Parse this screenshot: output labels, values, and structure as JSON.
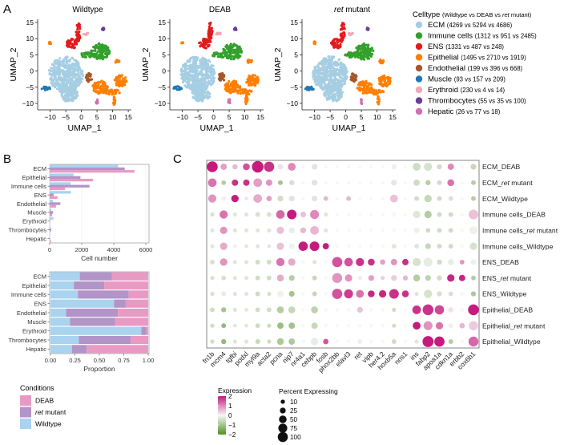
{
  "panel_labels": {
    "A": "A",
    "B": "B",
    "C": "C"
  },
  "colors": {
    "ECM": "#a6cee3",
    "Immune cells": "#33a02c",
    "ENS": "#e31a1c",
    "Epithelial": "#ff7f00",
    "Endothelial": "#a65628",
    "Muscle": "#1f78b4",
    "Erythroid": "#f4a6b4",
    "Thrombocytes": "#6a3d9a",
    "Hepatic": "#cf6fb0",
    "cond_DEAB": "#e99ac4",
    "cond_ret": "#b294c8",
    "cond_WT": "#a9d3ef",
    "expr_high": "#c51b7d",
    "expr_mid": "#f7f7f7",
    "expr_low": "#4d9221"
  },
  "chart_data": [
    {
      "type": "scatter",
      "id": "umap",
      "panels": [
        {
          "title": "Wildtype",
          "title_italic": false
        },
        {
          "title": "DEAB",
          "title_italic": false
        },
        {
          "title_italic_part": "ret",
          "title_rest": " mutant",
          "title_italic": true
        }
      ],
      "xlabel": "UMAP_1",
      "ylabel": "UMAP_2",
      "xlim": [
        -14,
        16
      ],
      "ylim": [
        -12,
        16
      ],
      "xticks": [
        "-10",
        "-5",
        "0",
        "5",
        "10",
        "15"
      ],
      "xtick_values": [
        -10,
        -5,
        0,
        5,
        10,
        15
      ],
      "yticks": [
        "15",
        "10",
        "5",
        "0",
        "-5",
        "-10"
      ],
      "ytick_values": [
        15,
        10,
        5,
        0,
        -5,
        -10
      ],
      "legend": {
        "title": "Celltype",
        "subtitle_pre": "(Wildtype vs DEAB vs ",
        "subtitle_italic": "ret",
        "subtitle_post": " mutant)",
        "entries": [
          {
            "name": "ECM",
            "counts": "(4269 vs 5294 vs 4686)"
          },
          {
            "name": "Immune cells",
            "counts": "(1312 vs 951 vs 2485)"
          },
          {
            "name": "ENS",
            "counts": "(1331 vs 487 vs 248)"
          },
          {
            "name": "Epithelial",
            "counts": "(1495 vs 2710 vs 1919)"
          },
          {
            "name": "Endothelial",
            "counts": "(199 vs 396 vs 668)"
          },
          {
            "name": "Muscle",
            "counts": "(93 vs 157 vs 209)"
          },
          {
            "name": "Erythroid",
            "counts": "(230 vs 4 vs 14)"
          },
          {
            "name": "Thrombocytes",
            "counts": "(55 vs 35 vs 100)"
          },
          {
            "name": "Hepatic",
            "counts": "(26 vs 77 vs 18)"
          }
        ]
      },
      "clusters": [
        {
          "type": "ECM",
          "cx": -5,
          "cy": -1,
          "rx": 5.5,
          "ry": 5.5
        },
        {
          "type": "ECM",
          "cx": -4,
          "cy": -7,
          "rx": 3,
          "ry": 2.5
        },
        {
          "type": "Muscle",
          "cx": -11.5,
          "cy": -5.3,
          "rx": 1.5,
          "ry": 0.6
        },
        {
          "type": "ENS",
          "cx": -3,
          "cy": 8.5,
          "rx": 1.8,
          "ry": 1.5
        },
        {
          "type": "ENS",
          "cx": -1,
          "cy": 12,
          "rx": 0.7,
          "ry": 3
        },
        {
          "type": "Immune cells",
          "cx": 6,
          "cy": 6,
          "rx": 3,
          "ry": 2.5
        },
        {
          "type": "Immune cells",
          "cx": 2,
          "cy": 5,
          "rx": 2.5,
          "ry": 0.8
        },
        {
          "type": "Endothelial",
          "cx": 2.5,
          "cy": -2,
          "rx": 1,
          "ry": 1.4
        },
        {
          "type": "Epithelial",
          "cx": 6,
          "cy": -5,
          "rx": 2.5,
          "ry": 2
        },
        {
          "type": "Epithelial",
          "cx": 12.5,
          "cy": -3,
          "rx": 2,
          "ry": 1.8
        },
        {
          "type": "Epithelial",
          "cx": 10,
          "cy": -6.5,
          "rx": 2.5,
          "ry": 0.8
        },
        {
          "type": "Epithelial",
          "cx": 10.5,
          "cy": -9,
          "rx": 0.4,
          "ry": 1.5
        },
        {
          "type": "Epithelial",
          "cx": 11.5,
          "cy": 3,
          "rx": 0.8,
          "ry": 0.6
        },
        {
          "type": "Epithelial",
          "cx": -10,
          "cy": 8.7,
          "rx": 0.3,
          "ry": 0.4
        },
        {
          "type": "Erythroid",
          "cx": 1.5,
          "cy": 11.5,
          "rx": 0.8,
          "ry": 0.4
        },
        {
          "type": "Thrombocytes",
          "cx": 7,
          "cy": 13,
          "rx": 0.4,
          "ry": 0.4
        },
        {
          "type": "Hepatic",
          "cx": 5,
          "cy": -9.5,
          "rx": 0.3,
          "ry": 0.8
        }
      ]
    },
    {
      "type": "bar",
      "id": "cellnumber",
      "orientation": "horizontal",
      "categories": [
        "ECM",
        "Epithelial",
        "Immune cells",
        "ENS",
        "Endothelial",
        "Muscle",
        "Erythroid",
        "Thrombocytes",
        "Hepatic"
      ],
      "series": [
        {
          "name": "Wildtype",
          "values": [
            4269,
            1495,
            1312,
            1331,
            199,
            93,
            230,
            55,
            26
          ]
        },
        {
          "name": "ret mutant",
          "values": [
            4686,
            1919,
            2485,
            248,
            668,
            209,
            14,
            100,
            18
          ]
        },
        {
          "name": "DEAB",
          "values": [
            5294,
            2710,
            951,
            487,
            396,
            157,
            4,
            35,
            77
          ]
        }
      ],
      "xlabel": "Cell number",
      "xlim": [
        0,
        6200
      ],
      "xticks": [
        "0",
        "2000",
        "4000",
        "6000"
      ],
      "xtick_values": [
        0,
        2000,
        4000,
        6000
      ],
      "grid": true
    },
    {
      "type": "bar",
      "id": "proportion",
      "orientation": "horizontal",
      "stacked": true,
      "categories": [
        "ECM",
        "Epithelial",
        "Immune cells",
        "ENS",
        "Endothelial",
        "Muscle",
        "Erythroid",
        "Thrombocytes",
        "Hepatic"
      ],
      "series": [
        {
          "name": "Wildtype",
          "values": [
            0.3,
            0.24,
            0.28,
            0.65,
            0.16,
            0.2,
            0.93,
            0.29,
            0.22
          ]
        },
        {
          "name": "ret mutant",
          "values": [
            0.33,
            0.31,
            0.52,
            0.12,
            0.53,
            0.46,
            0.05,
            0.53,
            0.15
          ]
        },
        {
          "name": "DEAB",
          "values": [
            0.37,
            0.45,
            0.2,
            0.23,
            0.31,
            0.34,
            0.02,
            0.18,
            0.63
          ]
        }
      ],
      "xlabel": "Proportion",
      "xlim": [
        0,
        1
      ],
      "xticks": [
        "0.00",
        "0.25",
        "0.50",
        "0.75",
        "1.00"
      ],
      "xtick_values": [
        0,
        0.25,
        0.5,
        0.75,
        1.0
      ],
      "legend": {
        "title": "Conditions",
        "entries": [
          {
            "key": "DEAB",
            "italic": "",
            "label": "DEAB"
          },
          {
            "key": "ret",
            "italic": "ret",
            "label": " mutant"
          },
          {
            "key": "WT",
            "italic": "",
            "label": "Wildtype"
          }
        ]
      }
    },
    {
      "type": "scatter",
      "id": "dotplot",
      "genes": [
        "fn1b",
        "mcm4",
        "tgfbi",
        "podxl",
        "myl9a",
        "acta2",
        "pcna",
        "nip7",
        "nr4a1",
        "cebpb",
        "fosb",
        "phox2bb",
        "elavl3",
        "ret",
        "vipb",
        "her4.2",
        "hoxb5a",
        "nos1",
        "ins",
        "fabp2",
        "apoa1a",
        "cdkn1a",
        "erbb2",
        "cox6b1"
      ],
      "groups": [
        {
          "pre": "ECM_",
          "italic": "",
          "post": "DEAB"
        },
        {
          "pre": "ECM_",
          "italic": "ret",
          "post": " mutant"
        },
        {
          "pre": "ECM_",
          "italic": "",
          "post": "Wildtype"
        },
        {
          "pre": "Immune cells_",
          "italic": "",
          "post": "DEAB"
        },
        {
          "pre": "Immune cells_",
          "italic": "ret",
          "post": " mutant"
        },
        {
          "pre": "Immune cells_",
          "italic": "",
          "post": "Wildtype"
        },
        {
          "pre": "ENS_",
          "italic": "",
          "post": "DEAB"
        },
        {
          "pre": "ENS_",
          "italic": "ret",
          "post": " mutant"
        },
        {
          "pre": "ENS_",
          "italic": "",
          "post": "Wildtype"
        },
        {
          "pre": "Epithelial_",
          "italic": "",
          "post": "DEAB"
        },
        {
          "pre": "Epithelial_",
          "italic": "ret",
          "post": " mutant"
        },
        {
          "pre": "Epithelial_",
          "italic": "",
          "post": "Wildtype"
        }
      ],
      "pct": [
        [
          80,
          20,
          10,
          25,
          95,
          70,
          15,
          35,
          3,
          15,
          3,
          3,
          3,
          3,
          3,
          3,
          10,
          3,
          35,
          40,
          10,
          20,
          3,
          15
        ],
        [
          45,
          8,
          20,
          20,
          45,
          20,
          8,
          10,
          3,
          15,
          3,
          3,
          3,
          3,
          3,
          3,
          15,
          3,
          20,
          10,
          8,
          25,
          3,
          8
        ],
        [
          40,
          8,
          30,
          3,
          45,
          12,
          15,
          15,
          3,
          15,
          8,
          3,
          8,
          3,
          3,
          3,
          35,
          3,
          8,
          30,
          8,
          8,
          3,
          8
        ],
        [
          5,
          40,
          5,
          5,
          8,
          8,
          45,
          60,
          15,
          50,
          5,
          3,
          3,
          3,
          3,
          3,
          8,
          3,
          30,
          30,
          8,
          8,
          3,
          60
        ],
        [
          5,
          30,
          5,
          5,
          5,
          5,
          30,
          15,
          15,
          45,
          5,
          3,
          3,
          3,
          3,
          3,
          5,
          3,
          15,
          8,
          8,
          8,
          3,
          40
        ],
        [
          5,
          30,
          5,
          3,
          5,
          3,
          30,
          15,
          55,
          60,
          20,
          3,
          3,
          3,
          3,
          3,
          8,
          3,
          8,
          15,
          8,
          8,
          3,
          30
        ],
        [
          8,
          30,
          5,
          5,
          8,
          8,
          40,
          30,
          3,
          5,
          3,
          70,
          45,
          40,
          25,
          12,
          20,
          20,
          40,
          50,
          10,
          15,
          8,
          15
        ],
        [
          5,
          8,
          5,
          5,
          8,
          8,
          25,
          15,
          3,
          8,
          3,
          65,
          30,
          8,
          15,
          5,
          15,
          10,
          25,
          15,
          10,
          30,
          20,
          8
        ],
        [
          5,
          8,
          5,
          5,
          8,
          5,
          20,
          15,
          3,
          8,
          3,
          70,
          50,
          35,
          25,
          30,
          60,
          25,
          5,
          40,
          10,
          8,
          5,
          10
        ],
        [
          8,
          10,
          5,
          3,
          8,
          8,
          25,
          25,
          3,
          25,
          3,
          3,
          3,
          15,
          3,
          3,
          5,
          3,
          45,
          80,
          55,
          12,
          5,
          80
        ],
        [
          5,
          8,
          3,
          3,
          8,
          5,
          20,
          20,
          3,
          20,
          3,
          3,
          3,
          3,
          3,
          3,
          5,
          3,
          35,
          50,
          30,
          8,
          12,
          55
        ],
        [
          5,
          10,
          5,
          5,
          8,
          5,
          25,
          20,
          3,
          30,
          12,
          3,
          3,
          8,
          3,
          3,
          8,
          3,
          5,
          85,
          70,
          8,
          3,
          65
        ]
      ],
      "expr": [
        [
          2.0,
          0.8,
          0.6,
          1.5,
          2.0,
          1.8,
          0.2,
          1.0,
          0,
          -0.3,
          0,
          0,
          0,
          0,
          0,
          0,
          0.1,
          0,
          -0.5,
          -0.4,
          -0.5,
          1.0,
          0,
          -0.6
        ],
        [
          1.2,
          -0.8,
          1.8,
          1.8,
          0.8,
          0.9,
          -1.0,
          -0.4,
          0,
          -0.3,
          0,
          0,
          0,
          0,
          0,
          0,
          0.2,
          0,
          -0.5,
          -0.8,
          -0.5,
          1.2,
          0,
          -0.8
        ],
        [
          0.9,
          0.1,
          2.0,
          0.2,
          0.7,
          0.8,
          -0.5,
          -0.3,
          0,
          -0.3,
          0.6,
          0,
          0.6,
          0,
          0,
          0,
          0.5,
          0,
          -0.5,
          -0.6,
          -0.5,
          -0.4,
          0,
          -0.8
        ],
        [
          -0.4,
          1.2,
          -0.3,
          -0.3,
          -0.4,
          -0.4,
          1.3,
          2.0,
          0.5,
          1.0,
          -0.3,
          0,
          0,
          0,
          0,
          0,
          0,
          0,
          -0.3,
          -0.8,
          -0.5,
          -0.5,
          0,
          0.5
        ],
        [
          -0.3,
          0.9,
          -0.3,
          -0.3,
          -0.3,
          -0.3,
          0.5,
          -0.2,
          0.6,
          0.6,
          -0.3,
          0,
          0,
          0,
          0,
          0,
          0,
          0,
          -0.1,
          -0.5,
          -0.5,
          -0.5,
          0,
          -0.1
        ],
        [
          -0.3,
          0.7,
          -0.1,
          -0.3,
          -0.3,
          -0.3,
          0.5,
          -0.1,
          2.0,
          2.0,
          2.0,
          0,
          0,
          0,
          0,
          0,
          -0.3,
          0,
          -0.3,
          -0.6,
          -0.5,
          -0.5,
          0,
          -0.4
        ],
        [
          -0.4,
          0.9,
          -0.3,
          -0.3,
          -0.5,
          -0.5,
          1.2,
          0.7,
          0,
          -0.3,
          0,
          1.5,
          1.5,
          1.8,
          1.8,
          0.8,
          0.9,
          1.8,
          -0.4,
          -0.2,
          -0.5,
          -0.2,
          0.9,
          -0.1
        ],
        [
          -0.4,
          -0.4,
          -0.3,
          -0.3,
          -0.5,
          -0.5,
          0.7,
          -0.8,
          0,
          -0.6,
          0,
          0.9,
          0.9,
          0.1,
          0.8,
          0.4,
          0.4,
          0.6,
          -0.8,
          -0.7,
          -0.5,
          1.9,
          1.9,
          -0.8
        ],
        [
          -0.4,
          -0.2,
          -0.3,
          -0.3,
          -0.5,
          -0.4,
          -0.1,
          -1.0,
          0,
          -0.6,
          0,
          1.5,
          1.7,
          1.2,
          1.9,
          1.9,
          1.8,
          1.8,
          -0.3,
          -0.4,
          -0.4,
          -0.4,
          0,
          -0.9
        ],
        [
          -0.5,
          -1.0,
          -0.3,
          -0.3,
          -0.5,
          -0.5,
          -0.8,
          -0.6,
          0,
          -0.7,
          0,
          0,
          0,
          0.5,
          0,
          0,
          -0.5,
          0,
          1.8,
          1.8,
          1.6,
          0.2,
          0,
          2.0
        ],
        [
          -0.5,
          -1.2,
          -0.3,
          -0.3,
          -0.5,
          -0.5,
          -1.1,
          -1.0,
          0,
          -0.6,
          0,
          0,
          0,
          0,
          0,
          0,
          -0.5,
          0,
          2.0,
          0.9,
          1.2,
          0.1,
          0.6,
          0.4
        ],
        [
          -0.5,
          -1.2,
          -0.3,
          -0.3,
          -0.6,
          -0.5,
          -0.9,
          -0.9,
          0,
          -0.2,
          1.5,
          0,
          0,
          0.1,
          0,
          0,
          -0.5,
          0,
          -0.3,
          2.0,
          2.0,
          -0.8,
          0,
          1.3
        ]
      ],
      "expr_legend": {
        "title": "Expression",
        "ticks": [
          "2",
          "1",
          "0",
          "−1",
          "−2"
        ],
        "tick_values": [
          2,
          1,
          0,
          -1,
          -2
        ],
        "range": [
          -2,
          2
        ]
      },
      "size_legend": {
        "title": "Percent Expressing",
        "labels": [
          "10",
          "25",
          "50",
          "75",
          "100"
        ],
        "values": [
          10,
          25,
          50,
          75,
          100
        ]
      }
    }
  ]
}
